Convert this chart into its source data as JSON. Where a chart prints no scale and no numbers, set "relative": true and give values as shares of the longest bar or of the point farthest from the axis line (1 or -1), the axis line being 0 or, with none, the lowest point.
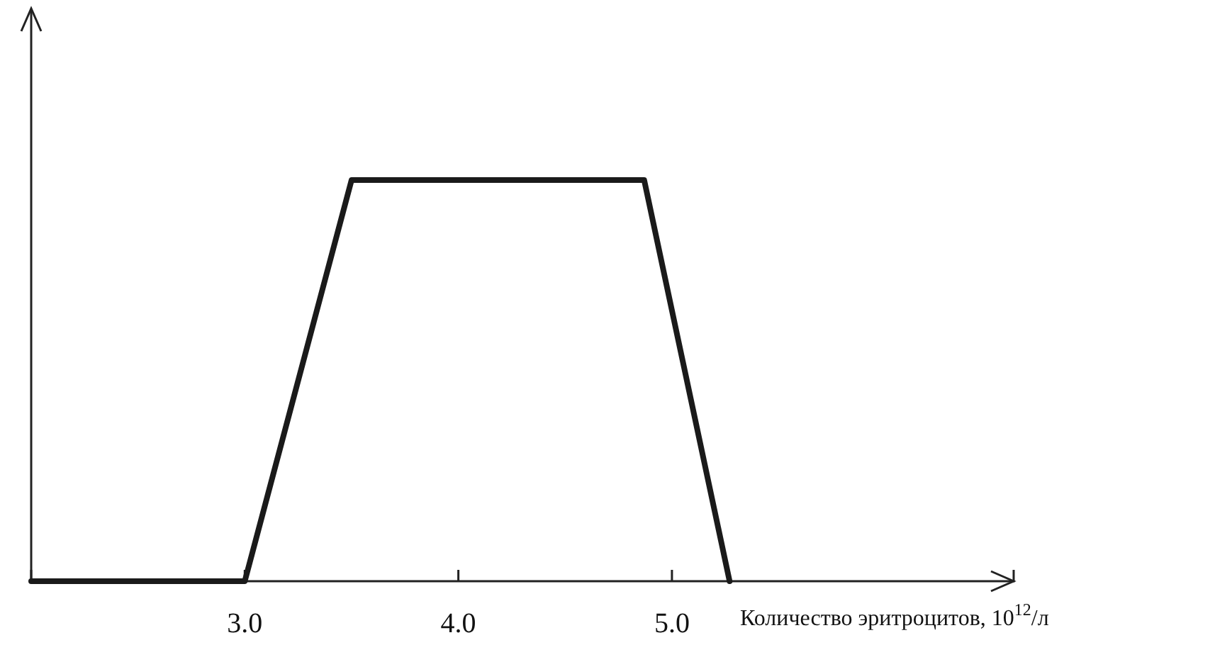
{
  "chart_data": {
    "type": "line",
    "relative": true,
    "xlabel": "Количество эритроцитов, 10$^{12}$/л",
    "x": [
      2.0,
      3.0,
      3.5,
      4.87,
      5.27
    ],
    "series": [
      {
        "color": "#1a1a1a",
        "values": [
          0,
          0,
          1,
          1,
          0
        ]
      }
    ],
    "xlim": [
      2.0,
      6.6
    ],
    "xticks": [
      {
        "value": 3.0,
        "label": "3.0"
      },
      {
        "value": 4.0,
        "label": "4.0"
      },
      {
        "value": 5.0,
        "label": "5.0"
      }
    ],
    "grid": false,
    "marker": "none",
    "line_style": "solid"
  }
}
